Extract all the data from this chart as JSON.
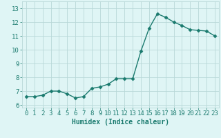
{
  "x": [
    0,
    1,
    2,
    3,
    4,
    5,
    6,
    7,
    8,
    9,
    10,
    11,
    12,
    13,
    14,
    15,
    16,
    17,
    18,
    19,
    20,
    21,
    22,
    23
  ],
  "y": [
    6.6,
    6.6,
    6.7,
    7.0,
    7.0,
    6.8,
    6.5,
    6.6,
    7.2,
    7.3,
    7.5,
    7.9,
    7.9,
    7.9,
    9.9,
    11.55,
    12.6,
    12.35,
    12.0,
    11.75,
    11.45,
    11.4,
    11.35,
    11.0
  ],
  "line_color": "#1a7a6e",
  "marker": "D",
  "marker_size": 2.5,
  "line_width": 1.0,
  "bg_color": "#dff5f5",
  "grid_color": "#b8d8d8",
  "xlabel": "Humidex (Indice chaleur)",
  "xlabel_fontsize": 7,
  "tick_fontsize": 6.5,
  "xlim": [
    -0.5,
    23.5
  ],
  "ylim": [
    5.8,
    13.5
  ],
  "yticks": [
    6,
    7,
    8,
    9,
    10,
    11,
    12,
    13
  ],
  "xticks": [
    0,
    1,
    2,
    3,
    4,
    5,
    6,
    7,
    8,
    9,
    10,
    11,
    12,
    13,
    14,
    15,
    16,
    17,
    18,
    19,
    20,
    21,
    22,
    23
  ]
}
